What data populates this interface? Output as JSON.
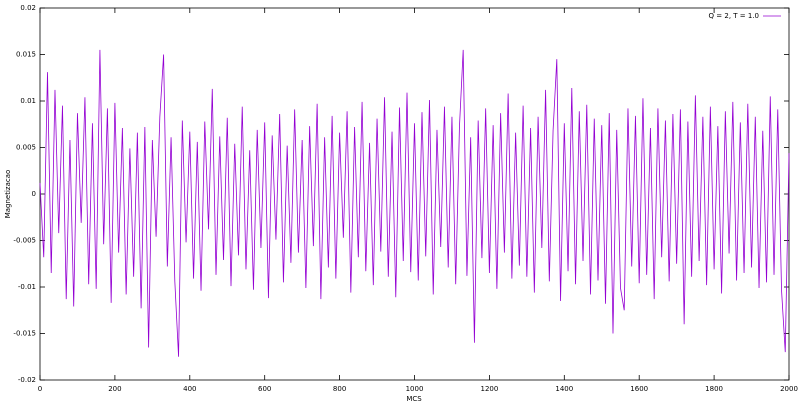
{
  "chart_data": {
    "type": "line",
    "xlabel": "MCS",
    "ylabel": "Magnetizacao",
    "xlim": [
      0,
      2000
    ],
    "ylim": [
      -0.02,
      0.02
    ],
    "xticks": [
      0,
      200,
      400,
      600,
      800,
      1000,
      1200,
      1400,
      1600,
      1800,
      2000
    ],
    "yticks": [
      -0.02,
      -0.015,
      -0.01,
      -0.005,
      0,
      0.005,
      0.01,
      0.015,
      0.02
    ],
    "legend": "upper right",
    "x": [
      0,
      10,
      20,
      30,
      40,
      50,
      60,
      70,
      80,
      90,
      100,
      110,
      120,
      130,
      140,
      150,
      160,
      170,
      180,
      190,
      200,
      210,
      220,
      230,
      240,
      250,
      260,
      270,
      280,
      290,
      300,
      310,
      320,
      330,
      340,
      350,
      360,
      370,
      380,
      390,
      400,
      410,
      420,
      430,
      440,
      450,
      460,
      470,
      480,
      490,
      500,
      510,
      520,
      530,
      540,
      550,
      560,
      570,
      580,
      590,
      600,
      610,
      620,
      630,
      640,
      650,
      660,
      670,
      680,
      690,
      700,
      710,
      720,
      730,
      740,
      750,
      760,
      770,
      780,
      790,
      800,
      810,
      820,
      830,
      840,
      850,
      860,
      870,
      880,
      890,
      900,
      910,
      920,
      930,
      940,
      950,
      960,
      970,
      980,
      990,
      1000,
      1010,
      1020,
      1030,
      1040,
      1050,
      1060,
      1070,
      1080,
      1090,
      1100,
      1110,
      1120,
      1130,
      1140,
      1150,
      1160,
      1170,
      1180,
      1190,
      1200,
      1210,
      1220,
      1230,
      1240,
      1250,
      1260,
      1270,
      1280,
      1290,
      1300,
      1310,
      1320,
      1330,
      1340,
      1350,
      1360,
      1370,
      1380,
      1390,
      1400,
      1410,
      1420,
      1430,
      1440,
      1450,
      1460,
      1470,
      1480,
      1490,
      1500,
      1510,
      1520,
      1530,
      1540,
      1550,
      1560,
      1570,
      1580,
      1590,
      1600,
      1610,
      1620,
      1630,
      1640,
      1650,
      1660,
      1670,
      1680,
      1690,
      1700,
      1710,
      1720,
      1730,
      1740,
      1750,
      1760,
      1770,
      1780,
      1790,
      1800,
      1810,
      1820,
      1830,
      1840,
      1850,
      1860,
      1870,
      1880,
      1890,
      1900,
      1910,
      1920,
      1930,
      1940,
      1950,
      1960,
      1970,
      1980,
      1990,
      2000
    ],
    "series": [
      {
        "name": "Q = 2, T = 1.0",
        "color": "#9400d3",
        "values": [
          0.0012,
          -0.0068,
          0.0131,
          -0.0085,
          0.0112,
          -0.0042,
          0.0095,
          -0.0113,
          0.0058,
          -0.0121,
          0.0087,
          -0.0031,
          0.0104,
          -0.0097,
          0.0076,
          -0.0102,
          0.0155,
          -0.0054,
          0.0092,
          -0.0117,
          0.0098,
          -0.0063,
          0.0071,
          -0.0108,
          0.0049,
          -0.0089,
          0.0066,
          -0.0123,
          0.0072,
          -0.0165,
          0.0058,
          -0.0046,
          0.0083,
          0.015,
          -0.0078,
          0.0061,
          -0.0094,
          -0.0175,
          0.0079,
          -0.0052,
          0.0067,
          -0.0091,
          0.0056,
          -0.0104,
          0.0078,
          -0.0038,
          0.0113,
          -0.0087,
          0.0062,
          -0.0071,
          0.0082,
          -0.0099,
          0.0054,
          -0.0066,
          0.0094,
          -0.0081,
          0.0047,
          -0.0103,
          0.0069,
          -0.0058,
          0.0077,
          -0.0112,
          0.0063,
          -0.0049,
          0.0086,
          -0.0095,
          0.0052,
          -0.0074,
          0.0091,
          -0.0063,
          0.0058,
          -0.0101,
          0.0073,
          -0.0056,
          0.0097,
          -0.0113,
          0.0061,
          -0.0079,
          0.0084,
          -0.0091,
          0.0066,
          -0.0047,
          0.0089,
          -0.0106,
          0.0072,
          -0.0068,
          0.0099,
          -0.0083,
          0.0055,
          -0.0098,
          0.0081,
          -0.0062,
          0.0104,
          -0.0089,
          0.0067,
          -0.0111,
          0.0093,
          -0.0072,
          0.0109,
          -0.0084,
          0.0076,
          -0.0093,
          0.0088,
          -0.0067,
          0.0101,
          -0.0108,
          0.0069,
          -0.0057,
          0.0094,
          -0.0079,
          0.0083,
          -0.0097,
          0.0072,
          0.0155,
          -0.0088,
          0.0061,
          -0.016,
          0.0079,
          -0.0069,
          0.0092,
          -0.0085,
          0.0074,
          -0.0102,
          0.0087,
          -0.0063,
          0.0108,
          -0.0091,
          0.0066,
          -0.0077,
          0.0095,
          -0.0089,
          0.0071,
          -0.0106,
          0.0083,
          -0.0058,
          0.0112,
          -0.0094,
          0.0068,
          0.0145,
          -0.0115,
          0.0076,
          -0.0083,
          0.0114,
          -0.0097,
          0.0089,
          -0.0072,
          0.0096,
          -0.0108,
          0.0081,
          -0.0093,
          0.0074,
          -0.0118,
          0.0087,
          -0.015,
          0.0069,
          -0.0101,
          -0.0125,
          0.0092,
          -0.0078,
          0.0084,
          -0.0096,
          0.0103,
          -0.0087,
          0.0071,
          -0.0113,
          0.0092,
          -0.0068,
          0.0079,
          -0.0094,
          0.0086,
          -0.0075,
          0.0091,
          -0.014,
          0.0078,
          -0.0089,
          0.0106,
          -0.0072,
          0.0083,
          -0.0098,
          0.0094,
          -0.0081,
          0.0073,
          -0.0107,
          0.0089,
          -0.0064,
          0.0099,
          -0.0093,
          0.0077,
          -0.0085,
          0.0097,
          -0.0079,
          0.0083,
          -0.0101,
          0.0068,
          -0.0095,
          0.0105,
          -0.0087,
          0.0091,
          -0.0103,
          -0.017,
          0.0044
        ]
      }
    ]
  }
}
